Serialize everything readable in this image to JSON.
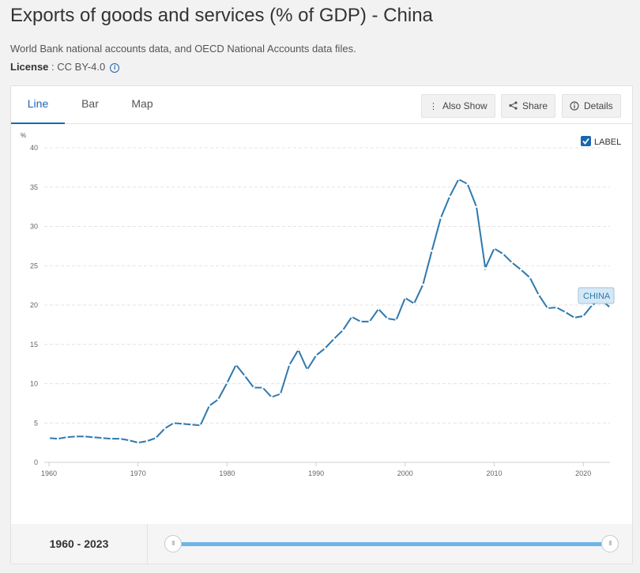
{
  "page": {
    "title": "Exports of goods and services (% of GDP) - China",
    "source": "World Bank national accounts data, and OECD National Accounts data files.",
    "license_label": "License",
    "license_sep": " : ",
    "license_value": "CC BY-4.0",
    "info_glyph": "i"
  },
  "tabs": [
    {
      "label": "Line",
      "active": true
    },
    {
      "label": "Bar",
      "active": false
    },
    {
      "label": "Map",
      "active": false
    }
  ],
  "toolbar": {
    "also_show": "Also Show",
    "share": "Share",
    "details": "Details"
  },
  "legend": {
    "label_toggle": "LABEL",
    "checked": true,
    "series_label": "CHINA"
  },
  "colors": {
    "line": "#2e78ad",
    "accent": "#1a66b0",
    "slider": "#6cb4e8",
    "label_bg": "#d6e8f5"
  },
  "chart_data": {
    "type": "line",
    "title": "Exports of goods and services (% of GDP) - China",
    "ylabel": "%",
    "xlabel": "",
    "xlim": [
      1960,
      2023
    ],
    "ylim": [
      0,
      40
    ],
    "x_ticks": [
      1960,
      1970,
      1980,
      1990,
      2000,
      2010,
      2020
    ],
    "y_ticks": [
      0,
      5,
      10,
      15,
      20,
      25,
      30,
      35,
      40
    ],
    "grid": "horizontal-dashed",
    "series": [
      {
        "name": "China",
        "x": [
          1960,
          1961,
          1962,
          1963,
          1964,
          1965,
          1966,
          1967,
          1968,
          1969,
          1970,
          1971,
          1972,
          1973,
          1974,
          1975,
          1976,
          1977,
          1978,
          1979,
          1980,
          1981,
          1982,
          1983,
          1984,
          1985,
          1986,
          1987,
          1988,
          1989,
          1990,
          1991,
          1992,
          1993,
          1994,
          1995,
          1996,
          1997,
          1998,
          1999,
          2000,
          2001,
          2002,
          2003,
          2004,
          2005,
          2006,
          2007,
          2008,
          2009,
          2010,
          2011,
          2012,
          2013,
          2014,
          2015,
          2016,
          2017,
          2018,
          2019,
          2020,
          2021,
          2022,
          2023
        ],
        "values": [
          3.1,
          3.0,
          3.2,
          3.3,
          3.3,
          3.2,
          3.1,
          3.0,
          3.0,
          2.8,
          2.5,
          2.7,
          3.1,
          4.3,
          5.0,
          4.9,
          4.8,
          4.7,
          7.2,
          8.0,
          10.1,
          12.4,
          11.0,
          9.5,
          9.5,
          8.3,
          8.7,
          12.4,
          14.3,
          11.8,
          13.6,
          14.5,
          15.7,
          16.8,
          18.5,
          17.9,
          17.9,
          19.5,
          18.3,
          18.1,
          20.9,
          20.2,
          22.6,
          26.9,
          31.1,
          33.8,
          36.0,
          35.4,
          32.5,
          24.7,
          27.2,
          26.5,
          25.4,
          24.5,
          23.5,
          21.3,
          19.6,
          19.7,
          19.1,
          18.4,
          18.6,
          20.0,
          20.7,
          19.7
        ]
      }
    ],
    "series_label": "CHINA",
    "range_start": 1960,
    "range_end": 2023
  },
  "footer": {
    "range_label": "1960 - 2023",
    "handle_glyph": "III"
  }
}
